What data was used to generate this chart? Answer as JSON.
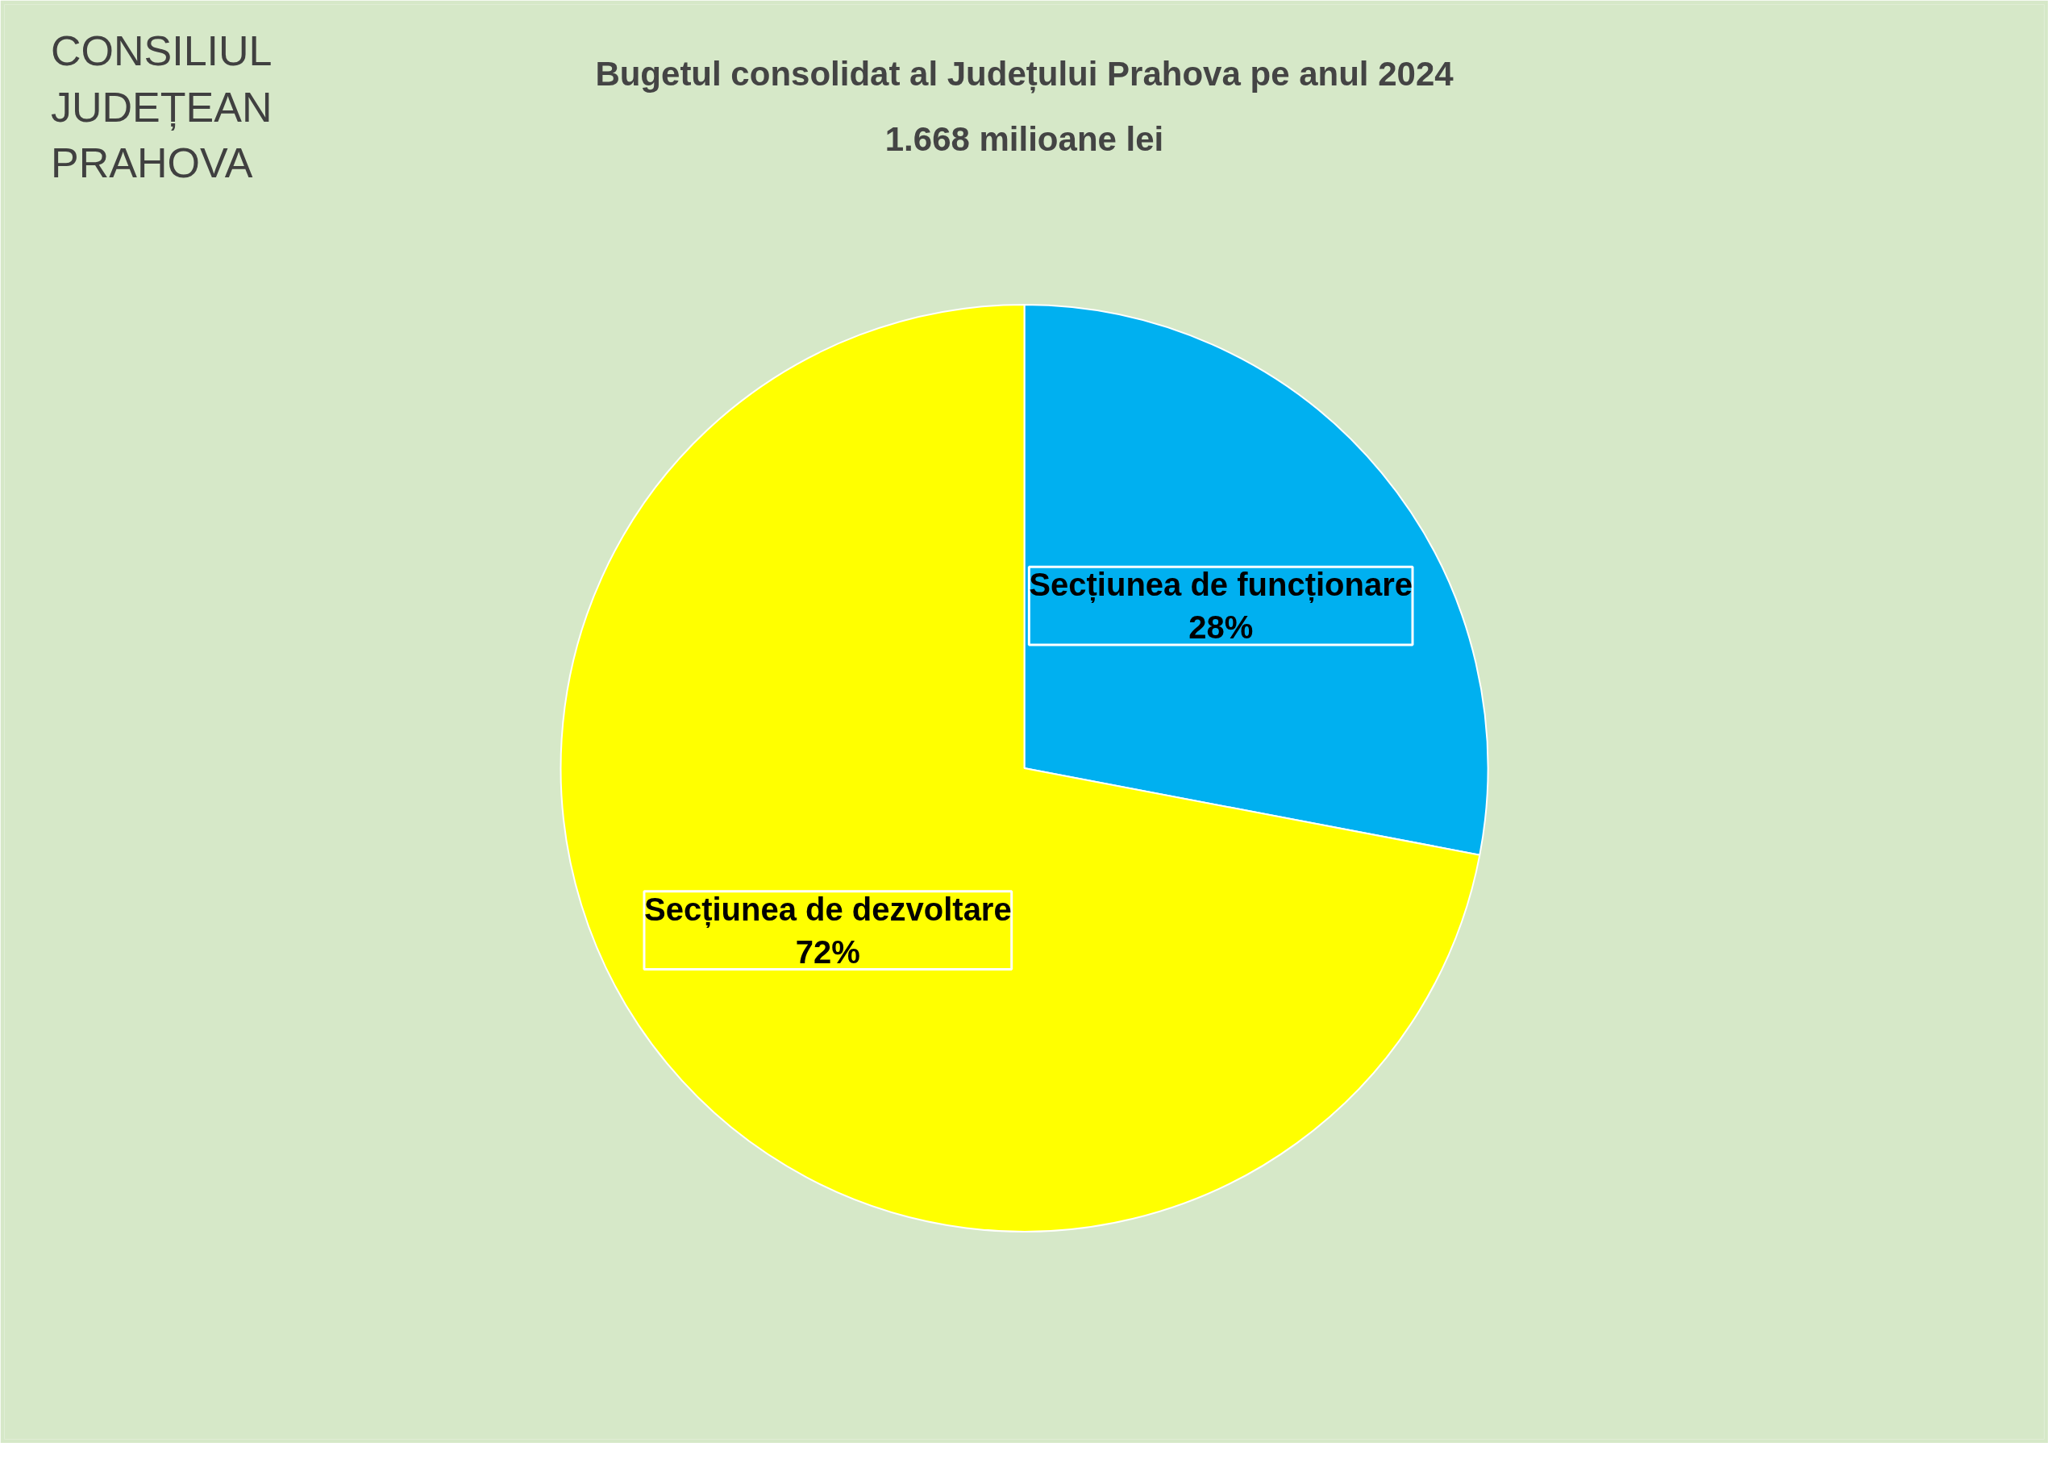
{
  "chart_data": {
    "type": "pie",
    "title": "Bugetul consolidat al Județului Prahova pe anul 2024",
    "subtitle": "1.668 milioane lei",
    "annotations": [
      "CONSILIUL JUDEȚEAN PRAHOVA"
    ],
    "categories": [
      "Secțiunea de funcționare",
      "Secțiunea de dezvoltare"
    ],
    "values": [
      28,
      72
    ],
    "colors": [
      "#00b0f0",
      "#ffff00"
    ],
    "value_labels": [
      "28%",
      "72%"
    ]
  }
}
